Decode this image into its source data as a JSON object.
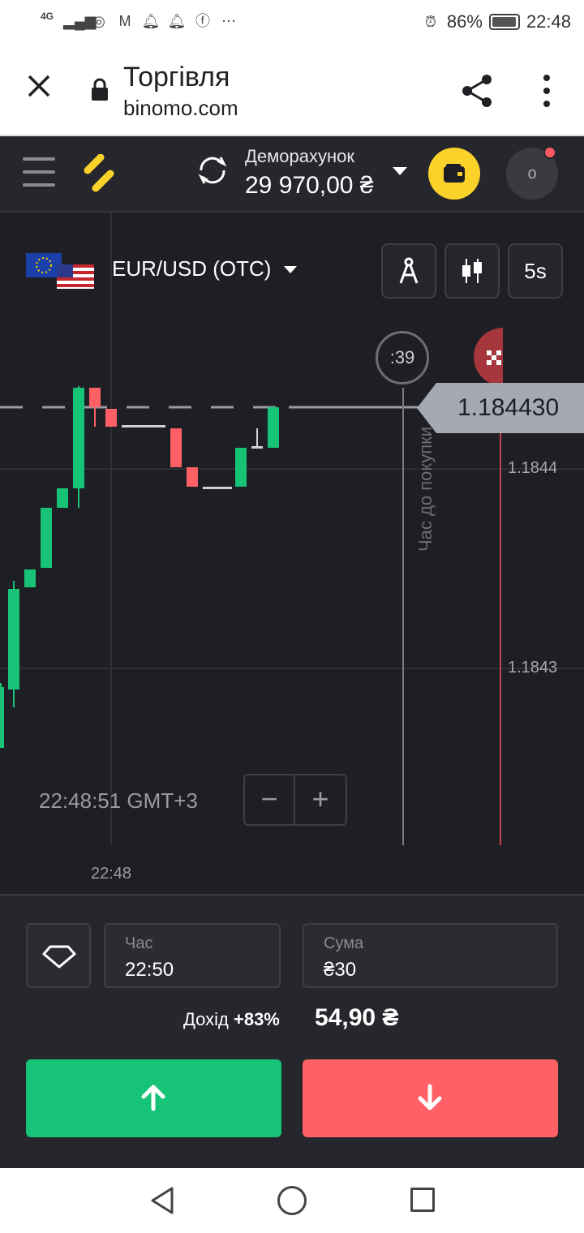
{
  "status_bar": {
    "left_icons": [
      "signal-4g-icon",
      "signal-icon",
      "chrome-icon",
      "gmail-icon",
      "alarm-bell-icon",
      "alarm-bell-icon",
      "facebook-icon",
      "more-dots-icon"
    ],
    "network_label": "4G",
    "battery_percent": "86%",
    "time": "22:48"
  },
  "browser": {
    "title": "Торгівля",
    "url": "binomo.com"
  },
  "app": {
    "account": {
      "type": "Деморахунок",
      "balance": "29 970,00 ₴"
    },
    "avatar_letter": "o",
    "asset": {
      "name": "EUR/USD (OTC)"
    },
    "tools": {
      "timeframe": "5s"
    },
    "chart": {
      "current_price": "1.184430",
      "axis_labels": [
        "1.1844",
        "1.1843"
      ],
      "timer": ":39",
      "purchase_time_label": "Час до покупки",
      "clock": "22:48:51 GMT+3",
      "time_tick": "22:48",
      "zoom_minus": "−",
      "zoom_plus": "+"
    },
    "trade": {
      "time_label": "Час",
      "time_value": "22:50",
      "amount_label": "Сума",
      "amount_value": "₴30",
      "income_label": "Дохід",
      "income_percent": "+83%",
      "payout": "54,90 ₴"
    },
    "colors": {
      "up": "#17c477",
      "down": "#ff6065",
      "accent": "#fbd22a"
    }
  }
}
